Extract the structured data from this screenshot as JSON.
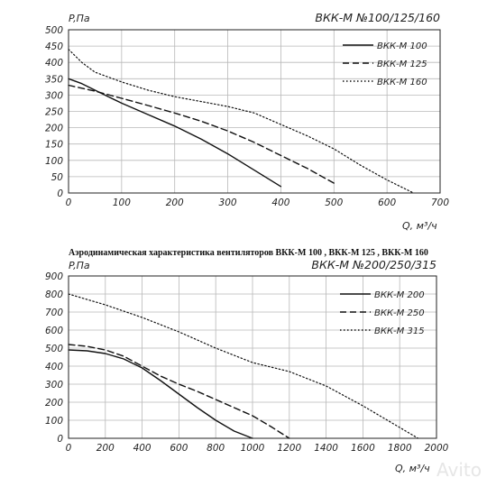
{
  "caption": "Аэродинамическая характеристика вентиляторов ВКК-М 100 , ВКК-М 125 , ВКК-М 160",
  "watermark": "Avito",
  "colors": {
    "line": "#111111",
    "grid": "#b8b8b8",
    "frame": "#222222",
    "background": "#ffffff"
  },
  "chart_data": [
    {
      "type": "line",
      "title": "ВКК-М №100/125/160",
      "ylabel": "P,Па",
      "xlabel": "Q, м³/ч",
      "xlim": [
        0,
        700
      ],
      "ylim": [
        0,
        500
      ],
      "xticks": [
        0,
        100,
        200,
        300,
        400,
        500,
        600,
        700
      ],
      "yticks": [
        0,
        50,
        100,
        150,
        200,
        250,
        300,
        350,
        400,
        450,
        500
      ],
      "grid": true,
      "legend_position": "top-right",
      "series": [
        {
          "name": "ВКК-М 100",
          "style": "solid",
          "x": [
            0,
            25,
            50,
            75,
            100,
            150,
            200,
            250,
            300,
            350,
            400
          ],
          "y": [
            350,
            335,
            315,
            295,
            275,
            240,
            205,
            165,
            120,
            70,
            20
          ]
        },
        {
          "name": "ВКК-М 125",
          "style": "dashed",
          "x": [
            0,
            50,
            100,
            150,
            200,
            250,
            300,
            350,
            400,
            450,
            500
          ],
          "y": [
            330,
            312,
            290,
            268,
            245,
            220,
            190,
            155,
            115,
            75,
            30
          ]
        },
        {
          "name": "ВКК-М 160",
          "style": "dotted",
          "x": [
            0,
            25,
            50,
            100,
            150,
            200,
            250,
            300,
            350,
            400,
            450,
            500,
            550,
            600,
            650
          ],
          "y": [
            440,
            400,
            370,
            340,
            315,
            295,
            280,
            265,
            245,
            210,
            175,
            135,
            85,
            40,
            0
          ]
        }
      ]
    },
    {
      "type": "line",
      "title": "ВКК-М №200/250/315",
      "ylabel": "P,Па",
      "xlabel": "Q, м³/ч",
      "xlim": [
        0,
        2000
      ],
      "ylim": [
        0,
        900
      ],
      "xticks": [
        0,
        200,
        400,
        600,
        800,
        1000,
        1200,
        1400,
        1600,
        1800,
        2000
      ],
      "yticks": [
        0,
        100,
        200,
        300,
        400,
        500,
        600,
        700,
        800,
        900
      ],
      "grid": true,
      "legend_position": "top-right",
      "series": [
        {
          "name": "ВКК-М 200",
          "style": "solid",
          "x": [
            0,
            100,
            200,
            300,
            400,
            500,
            600,
            700,
            800,
            900,
            1000
          ],
          "y": [
            490,
            485,
            470,
            440,
            390,
            320,
            245,
            170,
            100,
            40,
            0
          ]
        },
        {
          "name": "ВКК-М 250",
          "style": "dashed",
          "x": [
            0,
            100,
            200,
            300,
            400,
            500,
            600,
            700,
            800,
            900,
            1000,
            1100,
            1200
          ],
          "y": [
            520,
            510,
            490,
            455,
            400,
            345,
            300,
            260,
            215,
            170,
            125,
            65,
            0
          ]
        },
        {
          "name": "ВКК-М 315",
          "style": "dotted",
          "x": [
            0,
            200,
            400,
            600,
            800,
            1000,
            1200,
            1400,
            1600,
            1800,
            1900
          ],
          "y": [
            800,
            740,
            670,
            590,
            500,
            420,
            370,
            290,
            180,
            60,
            0
          ]
        }
      ]
    }
  ]
}
